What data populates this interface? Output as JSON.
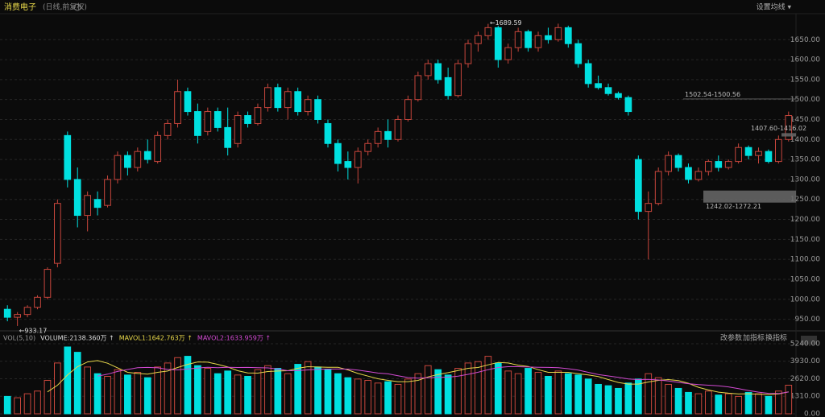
{
  "chart_data": {
    "type": "candlestick",
    "title": "消费电子",
    "subtitle": "(日线,前复权)",
    "menu_label": "设置均线 ▾",
    "up_color": "#c8463c",
    "down_color": "#00e0e0",
    "ylim": [
      925,
      1715
    ],
    "yticks": [
      {
        "value": 950,
        "label": "950.00"
      },
      {
        "value": 1000,
        "label": "1000.00"
      },
      {
        "value": 1050,
        "label": "1050.00"
      },
      {
        "value": 1100,
        "label": "1100.00"
      },
      {
        "value": 1150,
        "label": "1150.00"
      },
      {
        "value": 1200,
        "label": "1200.00"
      },
      {
        "value": 1250,
        "label": "1250.00"
      },
      {
        "value": 1300,
        "label": "1300.00"
      },
      {
        "value": 1350,
        "label": "1350.00"
      },
      {
        "value": 1400,
        "label": "1400.00"
      },
      {
        "value": 1450,
        "label": "1450.00"
      },
      {
        "value": 1500,
        "label": "1500.00"
      },
      {
        "value": 1550,
        "label": "1550.00"
      },
      {
        "value": 1600,
        "label": "1600.00"
      },
      {
        "value": 1650,
        "label": "1650.00"
      }
    ],
    "grid": true,
    "candles": [
      [
        975,
        985,
        945,
        955
      ],
      [
        955,
        968,
        933.17,
        962
      ],
      [
        962,
        985,
        955,
        980
      ],
      [
        980,
        1010,
        975,
        1005
      ],
      [
        1005,
        1080,
        1000,
        1075
      ],
      [
        1090,
        1250,
        1080,
        1240
      ],
      [
        1410,
        1420,
        1280,
        1300
      ],
      [
        1300,
        1330,
        1180,
        1210
      ],
      [
        1210,
        1270,
        1170,
        1260
      ],
      [
        1250,
        1270,
        1210,
        1230
      ],
      [
        1235,
        1310,
        1230,
        1300
      ],
      [
        1300,
        1370,
        1290,
        1360
      ],
      [
        1360,
        1370,
        1310,
        1330
      ],
      [
        1330,
        1380,
        1320,
        1370
      ],
      [
        1370,
        1400,
        1340,
        1350
      ],
      [
        1345,
        1420,
        1340,
        1410
      ],
      [
        1410,
        1450,
        1400,
        1440
      ],
      [
        1440,
        1550,
        1430,
        1520
      ],
      [
        1520,
        1530,
        1460,
        1470
      ],
      [
        1470,
        1490,
        1390,
        1410
      ],
      [
        1420,
        1480,
        1410,
        1470
      ],
      [
        1470,
        1480,
        1420,
        1430
      ],
      [
        1430,
        1480,
        1360,
        1380
      ],
      [
        1390,
        1470,
        1380,
        1460
      ],
      [
        1460,
        1470,
        1430,
        1440
      ],
      [
        1440,
        1490,
        1435,
        1480
      ],
      [
        1480,
        1540,
        1470,
        1530
      ],
      [
        1530,
        1540,
        1470,
        1480
      ],
      [
        1480,
        1530,
        1450,
        1520
      ],
      [
        1520,
        1530,
        1460,
        1470
      ],
      [
        1470,
        1510,
        1460,
        1500
      ],
      [
        1500,
        1510,
        1440,
        1450
      ],
      [
        1440,
        1450,
        1380,
        1390
      ],
      [
        1390,
        1400,
        1320,
        1340
      ],
      [
        1345,
        1370,
        1300,
        1330
      ],
      [
        1330,
        1380,
        1290,
        1370
      ],
      [
        1370,
        1400,
        1360,
        1390
      ],
      [
        1390,
        1430,
        1380,
        1420
      ],
      [
        1420,
        1450,
        1380,
        1400
      ],
      [
        1400,
        1460,
        1395,
        1450
      ],
      [
        1450,
        1510,
        1445,
        1500
      ],
      [
        1500,
        1570,
        1495,
        1560
      ],
      [
        1560,
        1600,
        1550,
        1590
      ],
      [
        1590,
        1600,
        1540,
        1550
      ],
      [
        1555,
        1580,
        1500,
        1510
      ],
      [
        1510,
        1600,
        1505,
        1590
      ],
      [
        1590,
        1650,
        1580,
        1640
      ],
      [
        1640,
        1670,
        1620,
        1660
      ],
      [
        1660,
        1689.59,
        1650,
        1680
      ],
      [
        1680,
        1685,
        1580,
        1600
      ],
      [
        1600,
        1640,
        1590,
        1630
      ],
      [
        1630,
        1680,
        1620,
        1670
      ],
      [
        1670,
        1675,
        1620,
        1630
      ],
      [
        1630,
        1670,
        1620,
        1660
      ],
      [
        1660,
        1680,
        1640,
        1650
      ],
      [
        1650,
        1690,
        1645,
        1680
      ],
      [
        1680,
        1685,
        1630,
        1640
      ],
      [
        1640,
        1650,
        1580,
        1590
      ],
      [
        1590,
        1600,
        1530,
        1540
      ],
      [
        1540,
        1560,
        1525,
        1530
      ],
      [
        1530,
        1540,
        1510,
        1515
      ],
      [
        1515,
        1520,
        1500,
        1505
      ],
      [
        1505,
        1510,
        1460,
        1470
      ],
      [
        1350,
        1360,
        1200,
        1220
      ],
      [
        1220,
        1270,
        1100,
        1240
      ],
      [
        1240,
        1330,
        1235,
        1320
      ],
      [
        1320,
        1370,
        1310,
        1360
      ],
      [
        1360,
        1365,
        1320,
        1330
      ],
      [
        1330,
        1340,
        1290,
        1300
      ],
      [
        1300,
        1330,
        1295,
        1320
      ],
      [
        1320,
        1350,
        1310,
        1345
      ],
      [
        1345,
        1360,
        1320,
        1330
      ],
      [
        1330,
        1350,
        1325,
        1345
      ],
      [
        1345,
        1390,
        1340,
        1380
      ],
      [
        1380,
        1385,
        1350,
        1360
      ],
      [
        1360,
        1380,
        1340,
        1370
      ],
      [
        1370,
        1375,
        1340,
        1345
      ],
      [
        1345,
        1410,
        1340,
        1400
      ],
      [
        1400,
        1470,
        1395,
        1460
      ]
    ],
    "annotations": [
      {
        "text": "←1689.59",
        "candle": 48
      },
      {
        "text": "←933.17",
        "candle": 1
      }
    ],
    "zones": [
      {
        "label": "1502.54-1500.56",
        "low": 1500.56,
        "high": 1502.54,
        "color": "#6a6a6a"
      },
      {
        "label": "1407.60-1416.02",
        "low": 1407.6,
        "high": 1416.02,
        "color": "#6a6a6a"
      },
      {
        "label": "1242.02-1272.21",
        "low": 1242.02,
        "high": 1272.21,
        "color": "#6a6a6a"
      }
    ],
    "volume": {
      "legend": [
        "VOL(5,10)",
        "VOLUME:2138.360万 ↑",
        "MAVOL1:1642.763万 ↑",
        "MAVOL2:1633.959万 ↑"
      ],
      "legend_colors": [
        "#9a9a9a",
        "#dddddd",
        "#e8d84a",
        "#d24ad2"
      ],
      "buttons": [
        "改参数",
        "加指标",
        "换指标"
      ],
      "ylim": [
        0,
        5420
      ],
      "yticks": [
        {
          "value": 0,
          "label": "0.00"
        },
        {
          "value": 1310,
          "label": "1310.00"
        },
        {
          "value": 2620,
          "label": "2620.00"
        },
        {
          "value": 3930,
          "label": "3930.00"
        },
        {
          "value": 5240,
          "label": "5240.00"
        }
      ],
      "values": [
        1300,
        1200,
        1500,
        1700,
        2500,
        3800,
        5000,
        4600,
        3500,
        3000,
        2800,
        3300,
        2900,
        3100,
        2700,
        3500,
        3800,
        4200,
        4300,
        3600,
        3400,
        3000,
        3200,
        2900,
        2800,
        3300,
        3600,
        3400,
        3000,
        3700,
        3900,
        3500,
        3300,
        3000,
        2700,
        2600,
        2500,
        2300,
        2400,
        2200,
        2600,
        3000,
        3600,
        3300,
        2900,
        3400,
        3800,
        3900,
        4300,
        3800,
        3200,
        3000,
        3400,
        3100,
        2800,
        3200,
        3000,
        2900,
        2600,
        2200,
        2100,
        1900,
        2300,
        2600,
        3000,
        2700,
        2200,
        1900,
        1600,
        1500,
        1700,
        1400,
        1500,
        1300,
        1600,
        1500,
        1300,
        1700,
        2138.36
      ],
      "series": [
        {
          "name": "MAVOL1",
          "color": "#e8d84a",
          "values": [
            null,
            null,
            null,
            null,
            1640,
            2140,
            2900,
            3520,
            3880,
            3980,
            3780,
            3440,
            3100,
            3020,
            2960,
            3100,
            3200,
            3460,
            3700,
            3880,
            3860,
            3700,
            3500,
            3220,
            3060,
            3040,
            3160,
            3200,
            3220,
            3400,
            3520,
            3500,
            3480,
            3480,
            3280,
            3020,
            2820,
            2620,
            2500,
            2400,
            2400,
            2500,
            2760,
            2940,
            3080,
            3240,
            3400,
            3460,
            3660,
            3840,
            3800,
            3640,
            3540,
            3300,
            3100,
            3100,
            3100,
            3000,
            2900,
            2780,
            2560,
            2340,
            2220,
            2220,
            2380,
            2500,
            2560,
            2480,
            2280,
            1980,
            1780,
            1620,
            1540,
            1480,
            1500,
            1460,
            1440,
            1480,
            1642.763
          ]
        },
        {
          "name": "MAVOL2",
          "color": "#d24ad2",
          "values": [
            null,
            null,
            null,
            null,
            null,
            null,
            null,
            null,
            null,
            2810,
            2960,
            3170,
            3310,
            3450,
            3470,
            3440,
            3320,
            3280,
            3360,
            3420,
            3480,
            3450,
            3480,
            3460,
            3470,
            3450,
            3430,
            3350,
            3220,
            3230,
            3280,
            3330,
            3340,
            3350,
            3340,
            3270,
            3160,
            3050,
            2990,
            2840,
            2710,
            2660,
            2690,
            2720,
            2740,
            2820,
            2950,
            3110,
            3300,
            3460,
            3520,
            3520,
            3500,
            3480,
            3470,
            3450,
            3370,
            3270,
            3100,
            2940,
            2830,
            2720,
            2610,
            2560,
            2580,
            2530,
            2450,
            2350,
            2250,
            2180,
            2140,
            2090,
            2010,
            1880,
            1740,
            1620,
            1530,
            1510,
            1633.959
          ]
        }
      ]
    }
  }
}
